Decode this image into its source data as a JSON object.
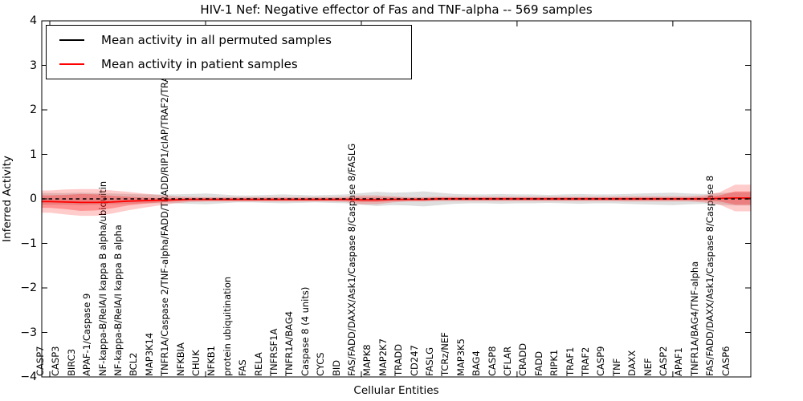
{
  "title": "HIV-1 Nef: Negative effector of Fas and TNF-alpha -- 569 samples",
  "legend": {
    "entries": [
      {
        "label": "Mean activity in all permuted samples",
        "color": "#000000"
      },
      {
        "label": "Mean activity in patient samples",
        "color": "#ff0000"
      }
    ]
  },
  "chart_data": {
    "type": "line",
    "title": "HIV-1 Nef: Negative effector of Fas and TNF-alpha -- 569 samples",
    "xlabel": "Cellular Entities",
    "ylabel": "Inferred Activity",
    "ylim": [
      -4,
      4
    ],
    "grid": false,
    "legend_position": "upper left",
    "ytick_values": [
      4,
      3,
      2,
      1,
      0,
      -1,
      -2,
      -3,
      -4
    ],
    "ytick_labels": [
      "4",
      "3",
      "2",
      "1",
      "0",
      "−1",
      "−2",
      "−3",
      "−4"
    ],
    "xtick_marks_at_category_index": [
      0,
      10,
      20,
      30,
      40
    ],
    "categories": [
      "CASP7",
      "CASP3",
      "BIRC3",
      "APAF-1/Caspase 9",
      "NF-kappa-B/RelA/I kappa B alpha/ubiquitin",
      "NF-kappa-B/RelA/I kappa B alpha",
      "BCL2",
      "MAP3K14",
      "TNFR1A/Caspase 2/TNF-alpha/FADD/TRADD/RIP1/cIAP/TRAF2/TRAF5",
      "NFKBIA",
      "CHUK",
      "NFKB1",
      "protein ubiquitination",
      "FAS",
      "RELA",
      "TNFRSF1A",
      "TNFR1A/BAG4",
      "Caspase 8 (4 units)",
      "CYCS",
      "BID",
      "FAS/FADD/DAXX/Ask1/Caspase 8/Caspase 8/FASLG",
      "MAPK8",
      "MAP2K7",
      "TRADD",
      "CD247",
      "FASLG",
      "TCRz/NEF",
      "MAP3K5",
      "BAG4",
      "CASP8",
      "CFLAR",
      "CRADD",
      "FADD",
      "RIPK1",
      "TRAF1",
      "TRAF2",
      "CASP9",
      "TNF",
      "DAXX",
      "NEF",
      "CASP2",
      "APAF1",
      "TNFR1A/BAG4/TNF-alpha",
      "FAS/FADD/DAXX/Ask1/Caspase 8/Caspase 8",
      "CASP6"
    ],
    "series": [
      {
        "name": "Mean activity in all permuted samples",
        "color": "#000000",
        "style": "dashed",
        "values": [
          0,
          0,
          0,
          0,
          0,
          0,
          0,
          0,
          0,
          0,
          0,
          0,
          0,
          0,
          0,
          0,
          0,
          0,
          0,
          0,
          0,
          0,
          0,
          0,
          0,
          0,
          0,
          0,
          0,
          0,
          0,
          0,
          0,
          0,
          0,
          0,
          0,
          0,
          0,
          0,
          0,
          0,
          0,
          0,
          0
        ]
      },
      {
        "name": "Mean activity in patient samples",
        "color": "#ff0000",
        "style": "solid",
        "values": [
          -0.06,
          -0.07,
          -0.08,
          -0.08,
          -0.07,
          -0.05,
          -0.04,
          -0.03,
          -0.02,
          -0.01,
          -0.01,
          -0.01,
          -0.01,
          -0.01,
          -0.01,
          -0.01,
          -0.01,
          -0.01,
          -0.01,
          -0.01,
          -0.02,
          -0.02,
          -0.01,
          -0.01,
          -0.01,
          0,
          0,
          0,
          0,
          0,
          0,
          0,
          0,
          0,
          0,
          0,
          0,
          0,
          0,
          0,
          0,
          0,
          0,
          0.01,
          0.02
        ]
      }
    ],
    "bands": [
      {
        "name": "permuted-samples-std-band",
        "color": "#999999",
        "opacity": 0.32,
        "center_series": 0,
        "half_widths": [
          0.13,
          0.13,
          0.14,
          0.13,
          0.12,
          0.11,
          0.1,
          0.1,
          0.1,
          0.11,
          0.12,
          0.1,
          0.08,
          0.08,
          0.09,
          0.1,
          0.09,
          0.08,
          0.09,
          0.1,
          0.13,
          0.16,
          0.14,
          0.15,
          0.17,
          0.14,
          0.11,
          0.1,
          0.1,
          0.11,
          0.1,
          0.1,
          0.09,
          0.1,
          0.11,
          0.1,
          0.1,
          0.11,
          0.12,
          0.13,
          0.14,
          0.12,
          0.11,
          0.13,
          0.15
        ]
      },
      {
        "name": "patient-samples-outer-band",
        "color": "#ff0000",
        "opacity": 0.2,
        "center_series": 1,
        "half_widths": [
          0.25,
          0.28,
          0.3,
          0.3,
          0.26,
          0.21,
          0.16,
          0.12,
          0.08,
          0.06,
          0.05,
          0.05,
          0.05,
          0.05,
          0.05,
          0.05,
          0.05,
          0.05,
          0.05,
          0.06,
          0.1,
          0.1,
          0.07,
          0.05,
          0.05,
          0.05,
          0.05,
          0.05,
          0.05,
          0.05,
          0.05,
          0.05,
          0.05,
          0.05,
          0.05,
          0.05,
          0.05,
          0.06,
          0.06,
          0.06,
          0.06,
          0.06,
          0.08,
          0.14,
          0.3
        ]
      },
      {
        "name": "patient-samples-inner-band",
        "color": "#ff0000",
        "opacity": 0.28,
        "center_series": 1,
        "half_widths": [
          0.14,
          0.16,
          0.19,
          0.18,
          0.14,
          0.1,
          0.07,
          0.05,
          0.04,
          0.03,
          0.03,
          0.03,
          0.03,
          0.03,
          0.03,
          0.03,
          0.03,
          0.03,
          0.03,
          0.03,
          0.05,
          0.05,
          0.04,
          0.03,
          0.03,
          0.03,
          0.03,
          0.03,
          0.03,
          0.03,
          0.03,
          0.03,
          0.03,
          0.03,
          0.03,
          0.03,
          0.03,
          0.03,
          0.03,
          0.03,
          0.03,
          0.03,
          0.04,
          0.07,
          0.15
        ]
      }
    ]
  }
}
